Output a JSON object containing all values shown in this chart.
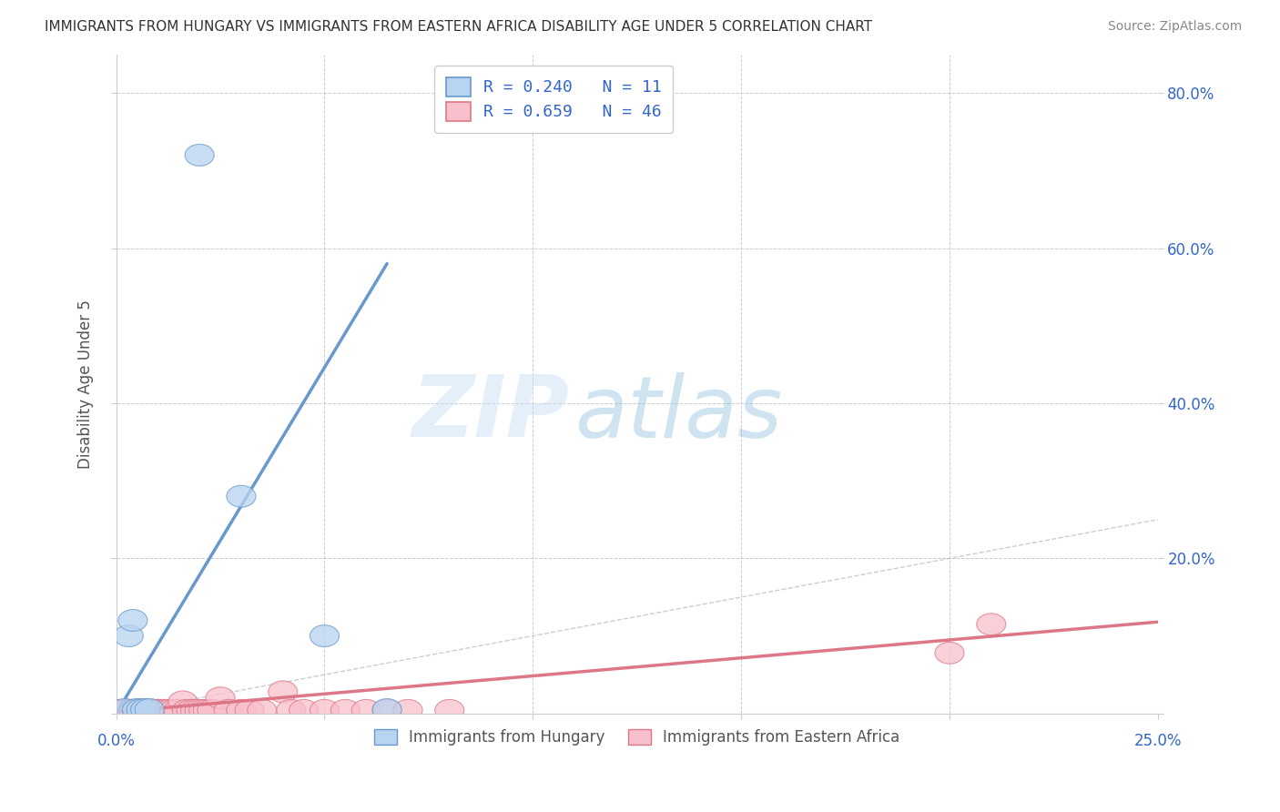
{
  "title": "IMMIGRANTS FROM HUNGARY VS IMMIGRANTS FROM EASTERN AFRICA DISABILITY AGE UNDER 5 CORRELATION CHART",
  "source": "Source: ZipAtlas.com",
  "ylabel": "Disability Age Under 5",
  "legend_bottom": [
    "Immigrants from Hungary",
    "Immigrants from Eastern Africa"
  ],
  "watermark_zip": "ZIP",
  "watermark_atlas": "atlas",
  "xlim": [
    0.0,
    0.25
  ],
  "ylim": [
    0.0,
    0.85
  ],
  "hungary_color": "#b8d4f0",
  "hungary_edge_color": "#6699cc",
  "eastern_africa_color": "#f8c0cc",
  "eastern_africa_edge_color": "#dd7788",
  "hungary_R": 0.24,
  "hungary_N": 11,
  "eastern_africa_R": 0.659,
  "eastern_africa_N": 46,
  "legend_text_color": "#3366cc",
  "hungary_x": [
    0.002,
    0.003,
    0.004,
    0.005,
    0.006,
    0.007,
    0.008,
    0.02,
    0.03,
    0.05,
    0.065
  ],
  "hungary_y": [
    0.005,
    0.1,
    0.12,
    0.005,
    0.005,
    0.005,
    0.005,
    0.72,
    0.28,
    0.1,
    0.005
  ],
  "eastern_africa_x": [
    0.001,
    0.002,
    0.002,
    0.003,
    0.003,
    0.004,
    0.004,
    0.005,
    0.005,
    0.006,
    0.007,
    0.007,
    0.008,
    0.008,
    0.009,
    0.01,
    0.01,
    0.011,
    0.012,
    0.013,
    0.014,
    0.015,
    0.016,
    0.017,
    0.018,
    0.019,
    0.02,
    0.021,
    0.022,
    0.023,
    0.025,
    0.027,
    0.03,
    0.032,
    0.035,
    0.04,
    0.042,
    0.045,
    0.05,
    0.055,
    0.06,
    0.065,
    0.07,
    0.08,
    0.2,
    0.21
  ],
  "eastern_africa_y": [
    0.004,
    0.004,
    0.004,
    0.004,
    0.004,
    0.004,
    0.004,
    0.004,
    0.004,
    0.004,
    0.004,
    0.004,
    0.004,
    0.004,
    0.004,
    0.004,
    0.004,
    0.004,
    0.004,
    0.004,
    0.004,
    0.004,
    0.015,
    0.004,
    0.004,
    0.004,
    0.004,
    0.004,
    0.004,
    0.004,
    0.02,
    0.004,
    0.004,
    0.004,
    0.004,
    0.028,
    0.004,
    0.004,
    0.004,
    0.004,
    0.004,
    0.004,
    0.004,
    0.004,
    0.078,
    0.115
  ],
  "hungary_trend_x": [
    0.0,
    0.065
  ],
  "hungary_trend_y": [
    0.0,
    0.58
  ],
  "eastern_africa_trend_x": [
    0.0,
    0.25
  ],
  "eastern_africa_trend_y": [
    0.002,
    0.118
  ],
  "background_color": "#ffffff",
  "grid_color": "#cccccc",
  "title_color": "#333333",
  "tick_label_color_blue": "#3366cc"
}
